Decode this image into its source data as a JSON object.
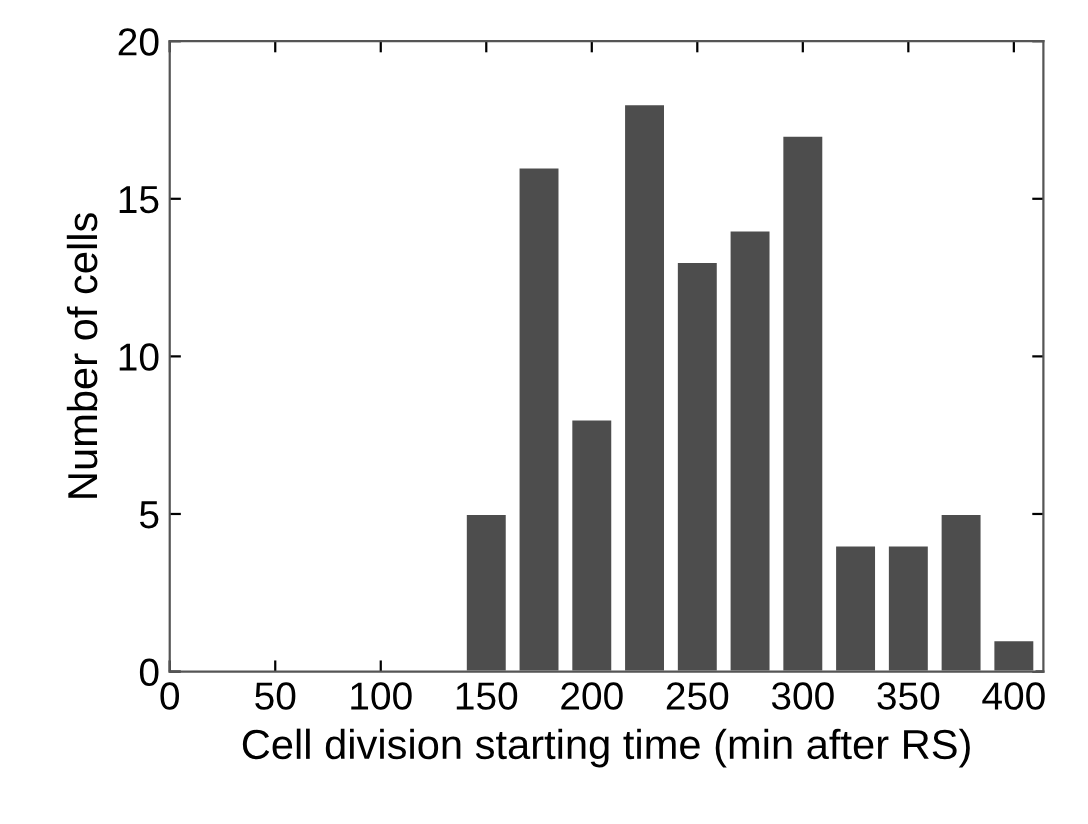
{
  "chart_data": {
    "type": "bar",
    "xlabel": "Cell division starting time (min after RS)",
    "ylabel": "Number of cells",
    "x": [
      150,
      175,
      200,
      225,
      250,
      275,
      300,
      325,
      350,
      375,
      400
    ],
    "values": [
      5,
      16,
      8,
      18,
      13,
      14,
      17,
      4,
      4,
      5,
      1
    ],
    "color": "#4d4d4d",
    "xlim": [
      0,
      414
    ],
    "xticks": [
      0,
      50,
      100,
      150,
      200,
      250,
      300,
      350,
      400
    ],
    "ylim": [
      0,
      20
    ],
    "yticks": [
      0,
      5,
      10,
      15,
      20
    ],
    "grid": false
  }
}
